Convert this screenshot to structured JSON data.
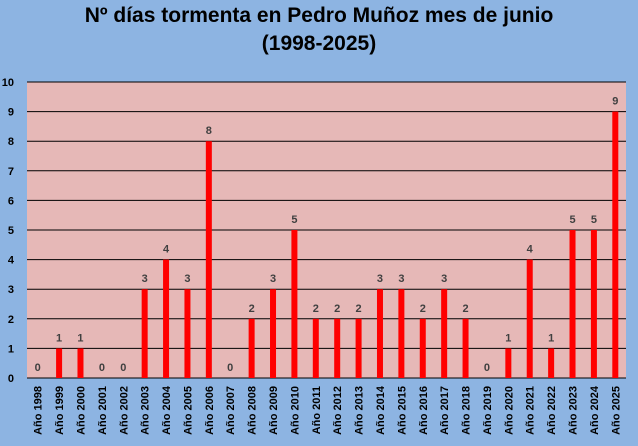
{
  "chart_data": {
    "type": "bar",
    "title_line1": "Nº días tormenta en Pedro Muñoz mes de junio",
    "title_line2": "(1998-2025)",
    "categories": [
      "Año 1998",
      "Año 1999",
      "Año 2000",
      "Año 2001",
      "Año 2002",
      "Año 2003",
      "Año 2004",
      "Año 2005",
      "Año 2006",
      "Año 2007",
      "Año 2008",
      "Año 2009",
      "Año 2010",
      "Año 2011",
      "Año 2012",
      "Año 2013",
      "Año 2014",
      "Año 2015",
      "Año 2016",
      "Año 2017",
      "Año 2018",
      "Año 2019",
      "Año 2020",
      "Año 2021",
      "Año 2022",
      "Año 2023",
      "Año 2024",
      "Año 2025"
    ],
    "values": [
      0,
      1,
      1,
      0,
      0,
      3,
      4,
      3,
      8,
      0,
      2,
      3,
      5,
      2,
      2,
      2,
      3,
      3,
      2,
      3,
      2,
      0,
      1,
      4,
      1,
      5,
      5,
      9
    ],
    "ylim": [
      0,
      10
    ],
    "yticks": [
      0,
      1,
      2,
      3,
      4,
      5,
      6,
      7,
      8,
      9,
      10
    ],
    "grid": true,
    "data_labels": true,
    "colors": {
      "background": "#8db4e2",
      "plot_area": "#e6b8b7",
      "bar": "#ff0000",
      "gridline": "#000000",
      "data_label": "#404040"
    }
  }
}
